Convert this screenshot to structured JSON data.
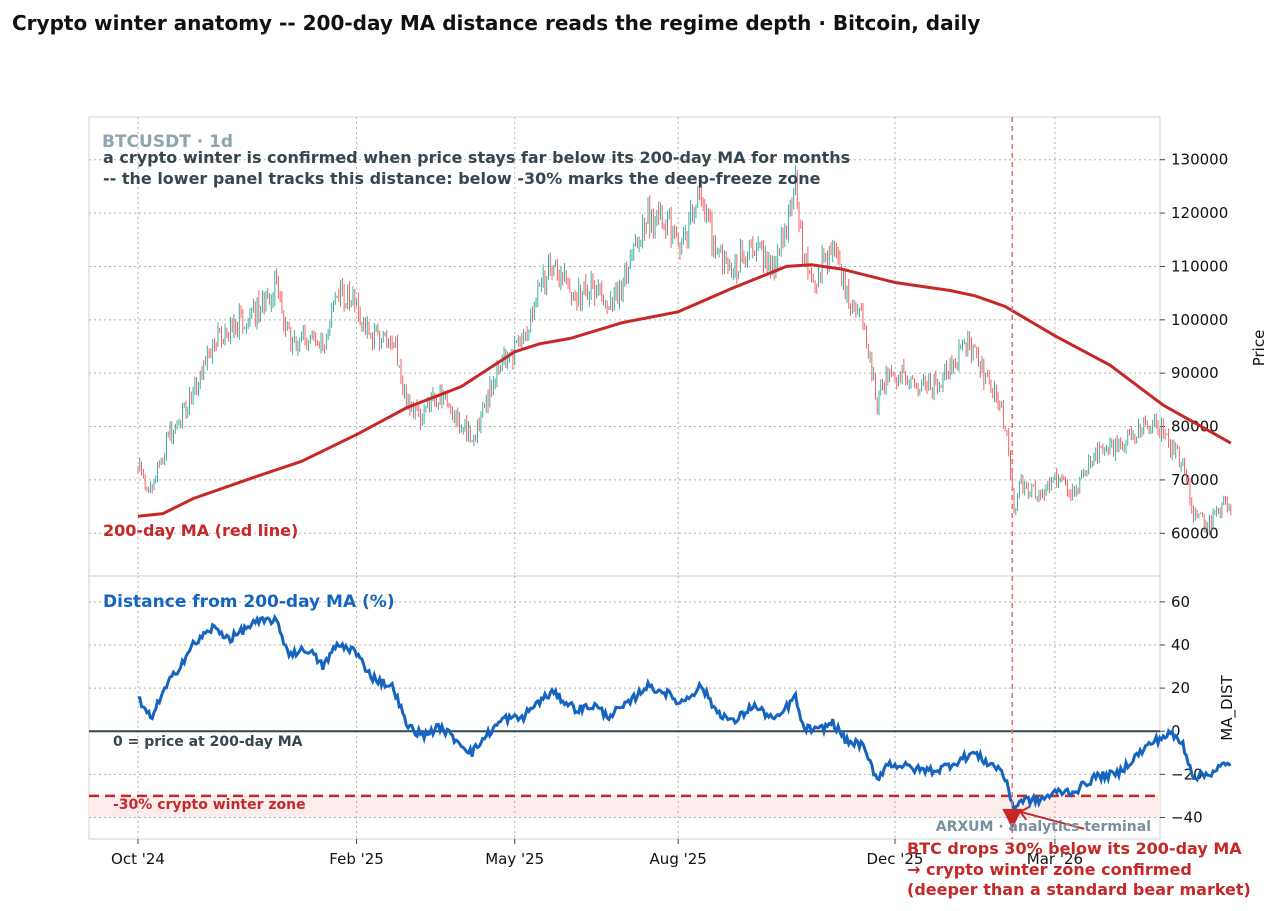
{
  "chart_data": [
    {
      "type": "candlestick",
      "title": "Crypto winter anatomy -- 200-day MA distance reads the regime depth  ·  Bitcoin, daily",
      "symbol_label": "BTCUSDT · 1d",
      "annotation_lines": [
        "a crypto winter is confirmed when price stays far below its 200-day MA for months",
        "-- the lower panel tracks this distance: below -30% marks the deep-freeze zone"
      ],
      "ma_label": "200-day MA (red line)",
      "ylabel": "Price",
      "ylim": [
        52000,
        138000
      ],
      "yticks": [
        60000,
        70000,
        80000,
        90000,
        100000,
        110000,
        120000,
        130000
      ],
      "x_start": "2024-10-01",
      "x_end": "2026-04-01",
      "xticks": [
        "Oct '24",
        "Feb '25",
        "May '25",
        "Aug '25",
        "Dec '25",
        "Mar '26"
      ],
      "xtick_dates": [
        "2024-10-01",
        "2025-02-01",
        "2025-05-01",
        "2025-08-01",
        "2025-12-01",
        "2026-03-01"
      ],
      "marker_date": "2026-02-05",
      "price_path": [
        [
          "2024-10-01",
          72500
        ],
        [
          "2024-10-08",
          67500
        ],
        [
          "2024-10-18",
          78000
        ],
        [
          "2024-11-01",
          86000
        ],
        [
          "2024-11-12",
          96000
        ],
        [
          "2024-11-22",
          98500
        ],
        [
          "2024-12-05",
          101000
        ],
        [
          "2024-12-17",
          106500
        ],
        [
          "2024-12-25",
          96500
        ],
        [
          "2025-01-05",
          96000
        ],
        [
          "2025-01-13",
          94500
        ],
        [
          "2025-01-21",
          105000
        ],
        [
          "2025-01-30",
          104000
        ],
        [
          "2025-02-10",
          97000
        ],
        [
          "2025-02-22",
          96500
        ],
        [
          "2025-03-01",
          84500
        ],
        [
          "2025-03-10",
          82000
        ],
        [
          "2025-03-20",
          86500
        ],
        [
          "2025-04-07",
          77500
        ],
        [
          "2025-04-15",
          84500
        ],
        [
          "2025-04-25",
          93500
        ],
        [
          "2025-05-05",
          94500
        ],
        [
          "2025-05-12",
          104000
        ],
        [
          "2025-05-22",
          110000
        ],
        [
          "2025-06-05",
          104000
        ],
        [
          "2025-06-15",
          106000
        ],
        [
          "2025-06-22",
          101500
        ],
        [
          "2025-07-03",
          108500
        ],
        [
          "2025-07-14",
          119500
        ],
        [
          "2025-07-25",
          118500
        ],
        [
          "2025-08-02",
          114000
        ],
        [
          "2025-08-14",
          123000
        ],
        [
          "2025-08-22",
          113000
        ],
        [
          "2025-09-01",
          109000
        ],
        [
          "2025-09-12",
          115000
        ],
        [
          "2025-09-25",
          109500
        ],
        [
          "2025-10-06",
          124500
        ],
        [
          "2025-10-10",
          112000
        ],
        [
          "2025-10-18",
          107500
        ],
        [
          "2025-10-27",
          115000
        ],
        [
          "2025-11-04",
          104000
        ],
        [
          "2025-11-12",
          102500
        ],
        [
          "2025-11-21",
          84500
        ],
        [
          "2025-11-27",
          91000
        ],
        [
          "2025-12-05",
          89500
        ],
        [
          "2025-12-15",
          88500
        ],
        [
          "2025-12-25",
          87500
        ],
        [
          "2026-01-05",
          93000
        ],
        [
          "2026-01-14",
          95500
        ],
        [
          "2026-01-21",
          89000
        ],
        [
          "2026-01-30",
          84000
        ],
        [
          "2026-02-02",
          77000
        ],
        [
          "2026-02-06",
          63500
        ],
        [
          "2026-02-10",
          69500
        ],
        [
          "2026-02-20",
          67500
        ],
        [
          "2026-03-03",
          70500
        ],
        [
          "2026-03-12",
          67500
        ],
        [
          "2026-03-24",
          74500
        ],
        [
          "2026-04-05",
          76000
        ],
        [
          "2026-04-15",
          79000
        ],
        [
          "2026-04-25",
          81500
        ],
        [
          "2026-05-05",
          76500
        ],
        [
          "2026-05-12",
          73000
        ],
        [
          "2026-05-18",
          63500
        ],
        [
          "2026-05-26",
          61500
        ],
        [
          "2026-06-03",
          65500
        ],
        [
          "2026-06-08",
          63500
        ]
      ],
      "ma200": [
        [
          "2024-10-01",
          63200
        ],
        [
          "2024-10-15",
          63700
        ],
        [
          "2024-11-01",
          66500
        ],
        [
          "2024-12-01",
          70000
        ],
        [
          "2025-01-01",
          73500
        ],
        [
          "2025-02-01",
          78500
        ],
        [
          "2025-03-01",
          83500
        ],
        [
          "2025-04-01",
          87500
        ],
        [
          "2025-05-01",
          94000
        ],
        [
          "2025-05-15",
          95500
        ],
        [
          "2025-06-01",
          96500
        ],
        [
          "2025-07-01",
          99500
        ],
        [
          "2025-08-01",
          101500
        ],
        [
          "2025-09-01",
          106000
        ],
        [
          "2025-10-01",
          110000
        ],
        [
          "2025-10-15",
          110300
        ],
        [
          "2025-11-01",
          109500
        ],
        [
          "2025-12-01",
          107000
        ],
        [
          "2026-01-01",
          105500
        ],
        [
          "2026-01-15",
          104500
        ],
        [
          "2026-02-01",
          102500
        ],
        [
          "2026-03-01",
          97000
        ],
        [
          "2026-04-01",
          91500
        ],
        [
          "2026-05-01",
          84000
        ],
        [
          "2026-06-08",
          76900
        ]
      ]
    },
    {
      "type": "line",
      "title": "Distance from 200-day MA (%)",
      "ylabel": "MA_DIST",
      "ylim": [
        -50,
        72
      ],
      "yticks": [
        -40,
        -20,
        0,
        20,
        40,
        60
      ],
      "zero_label": "0  = price at 200-day MA",
      "zone_label": "-30%  crypto winter zone",
      "zone_threshold": -30,
      "zone_floor": -40,
      "series": [
        {
          "values": [
            [
              "2024-10-01",
              15
            ],
            [
              "2024-10-08",
              6
            ],
            [
              "2024-10-18",
              22
            ],
            [
              "2024-11-01",
              40
            ],
            [
              "2024-11-12",
              48
            ],
            [
              "2024-11-22",
              43
            ],
            [
              "2024-12-05",
              50
            ],
            [
              "2024-12-17",
              52
            ],
            [
              "2024-12-25",
              36
            ],
            [
              "2025-01-05",
              38
            ],
            [
              "2025-01-13",
              30
            ],
            [
              "2025-01-21",
              40
            ],
            [
              "2025-01-30",
              38
            ],
            [
              "2025-02-10",
              25
            ],
            [
              "2025-02-22",
              20
            ],
            [
              "2025-03-01",
              3
            ],
            [
              "2025-03-10",
              -2
            ],
            [
              "2025-03-20",
              2
            ],
            [
              "2025-04-07",
              -10
            ],
            [
              "2025-04-15",
              -2
            ],
            [
              "2025-04-25",
              6
            ],
            [
              "2025-05-05",
              6
            ],
            [
              "2025-05-12",
              12
            ],
            [
              "2025-05-22",
              18
            ],
            [
              "2025-06-05",
              10
            ],
            [
              "2025-06-15",
              12
            ],
            [
              "2025-06-22",
              7
            ],
            [
              "2025-07-03",
              12
            ],
            [
              "2025-07-14",
              21
            ],
            [
              "2025-07-25",
              18
            ],
            [
              "2025-08-02",
              13
            ],
            [
              "2025-08-14",
              21
            ],
            [
              "2025-08-22",
              10
            ],
            [
              "2025-09-01",
              4
            ],
            [
              "2025-09-12",
              12
            ],
            [
              "2025-09-25",
              5
            ],
            [
              "2025-10-06",
              16
            ],
            [
              "2025-10-10",
              2
            ],
            [
              "2025-10-18",
              0
            ],
            [
              "2025-10-27",
              4
            ],
            [
              "2025-11-04",
              -5
            ],
            [
              "2025-11-12",
              -6
            ],
            [
              "2025-11-21",
              -22
            ],
            [
              "2025-11-27",
              -15
            ],
            [
              "2025-12-05",
              -16
            ],
            [
              "2025-12-15",
              -18
            ],
            [
              "2025-12-25",
              -18
            ],
            [
              "2026-01-05",
              -14
            ],
            [
              "2026-01-14",
              -10
            ],
            [
              "2026-01-21",
              -14
            ],
            [
              "2026-01-30",
              -18
            ],
            [
              "2026-02-02",
              -25
            ],
            [
              "2026-02-06",
              -36
            ],
            [
              "2026-02-10",
              -32
            ],
            [
              "2026-02-20",
              -32
            ],
            [
              "2026-03-03",
              -28
            ],
            [
              "2026-03-12",
              -28
            ],
            [
              "2026-03-24",
              -21
            ],
            [
              "2026-04-05",
              -20
            ],
            [
              "2026-04-15",
              -12
            ],
            [
              "2026-04-25",
              -5
            ],
            [
              "2026-05-05",
              -1
            ],
            [
              "2026-05-12",
              -6
            ],
            [
              "2026-05-18",
              -21
            ],
            [
              "2026-05-26",
              -20
            ],
            [
              "2026-06-03",
              -16
            ],
            [
              "2026-06-08",
              -16
            ]
          ]
        }
      ],
      "callout_lines": [
        "BTC drops 30% below its 200-day MA",
        "→ crypto winter zone confirmed",
        "(deeper than a standard bear market)"
      ]
    }
  ],
  "watermark": "ARXUM · analytics terminal",
  "colors": {
    "up": "#26a69a",
    "down": "#ef5350",
    "ma": "#c62828",
    "dist": "#1565c0",
    "zero_line": "#37474f",
    "annotation": "#37474f",
    "symbol": "#90a4ae",
    "zone_fill": "#fdecec",
    "grid": "#b0b0b0"
  }
}
